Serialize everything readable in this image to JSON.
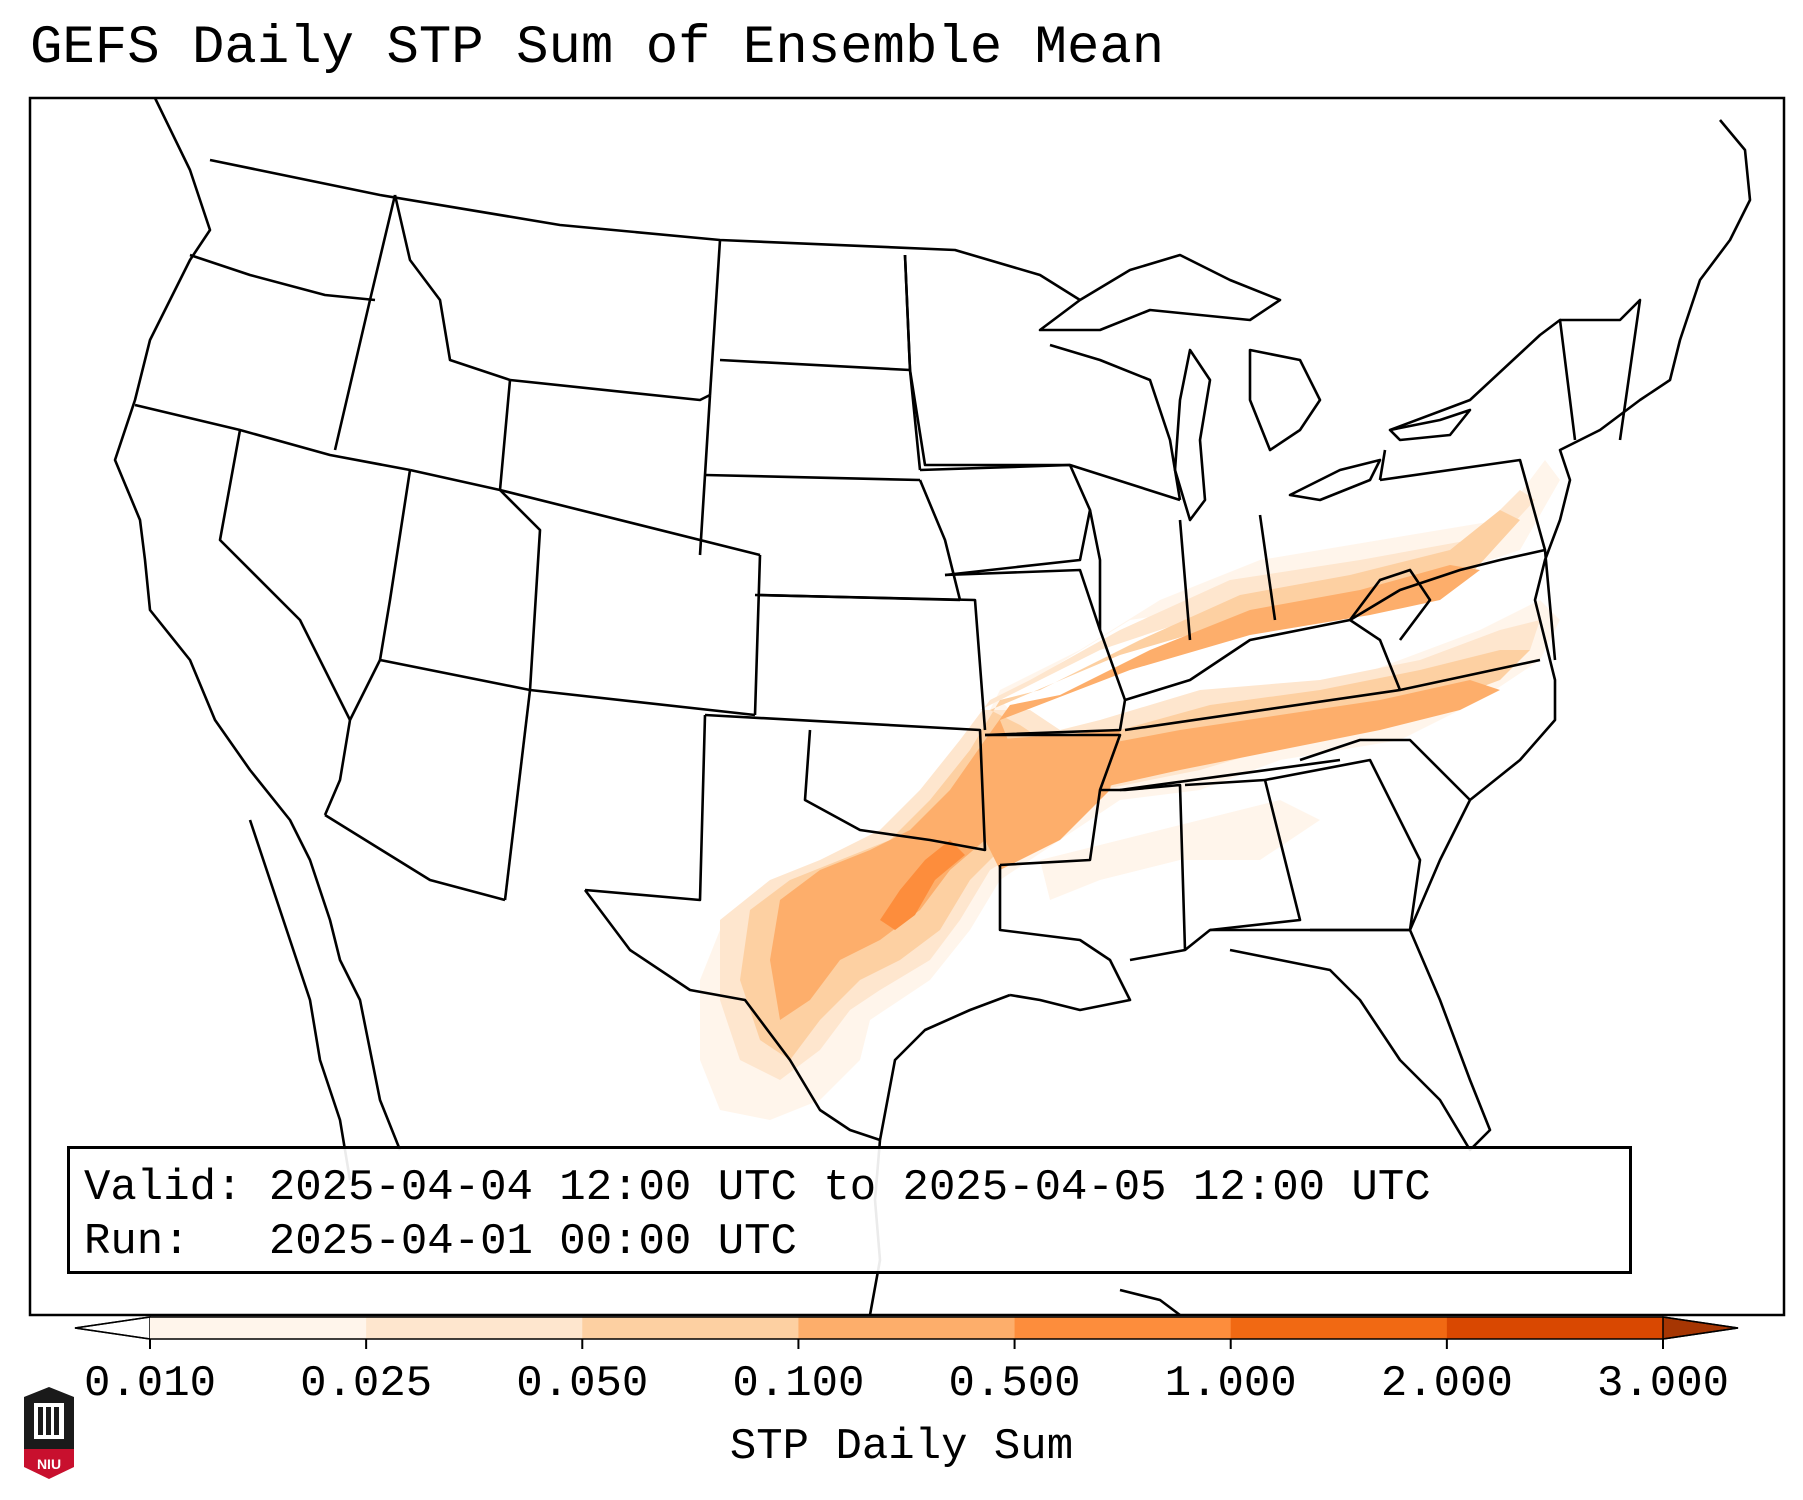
{
  "title": "GEFS Daily STP Sum of Ensemble Mean",
  "info": {
    "valid_label": "Valid:",
    "valid_value": "2025-04-04 12:00 UTC to 2025-04-05 12:00 UTC",
    "run_label": "Run:",
    "run_value": "2025-04-01 00:00 UTC"
  },
  "colorbar": {
    "label": "STP Daily Sum",
    "ticks": [
      "0.010",
      "0.025",
      "0.050",
      "0.100",
      "0.500",
      "1.000",
      "2.000",
      "3.000"
    ],
    "colors": [
      "#fff5eb",
      "#fee6ce",
      "#fdd0a2",
      "#fdae6b",
      "#fd8d3c",
      "#f16913",
      "#d94801"
    ],
    "extend": "both"
  },
  "map": {
    "projection": "Lambert conformal, contiguous United States",
    "features": [
      "state boundaries",
      "coastlines",
      "Great Lakes"
    ],
    "highlighted_region": "Texas through Arkansas, Tennessee, Kentucky, Virginia and North Carolina"
  },
  "logo": {
    "text": "NIU"
  }
}
